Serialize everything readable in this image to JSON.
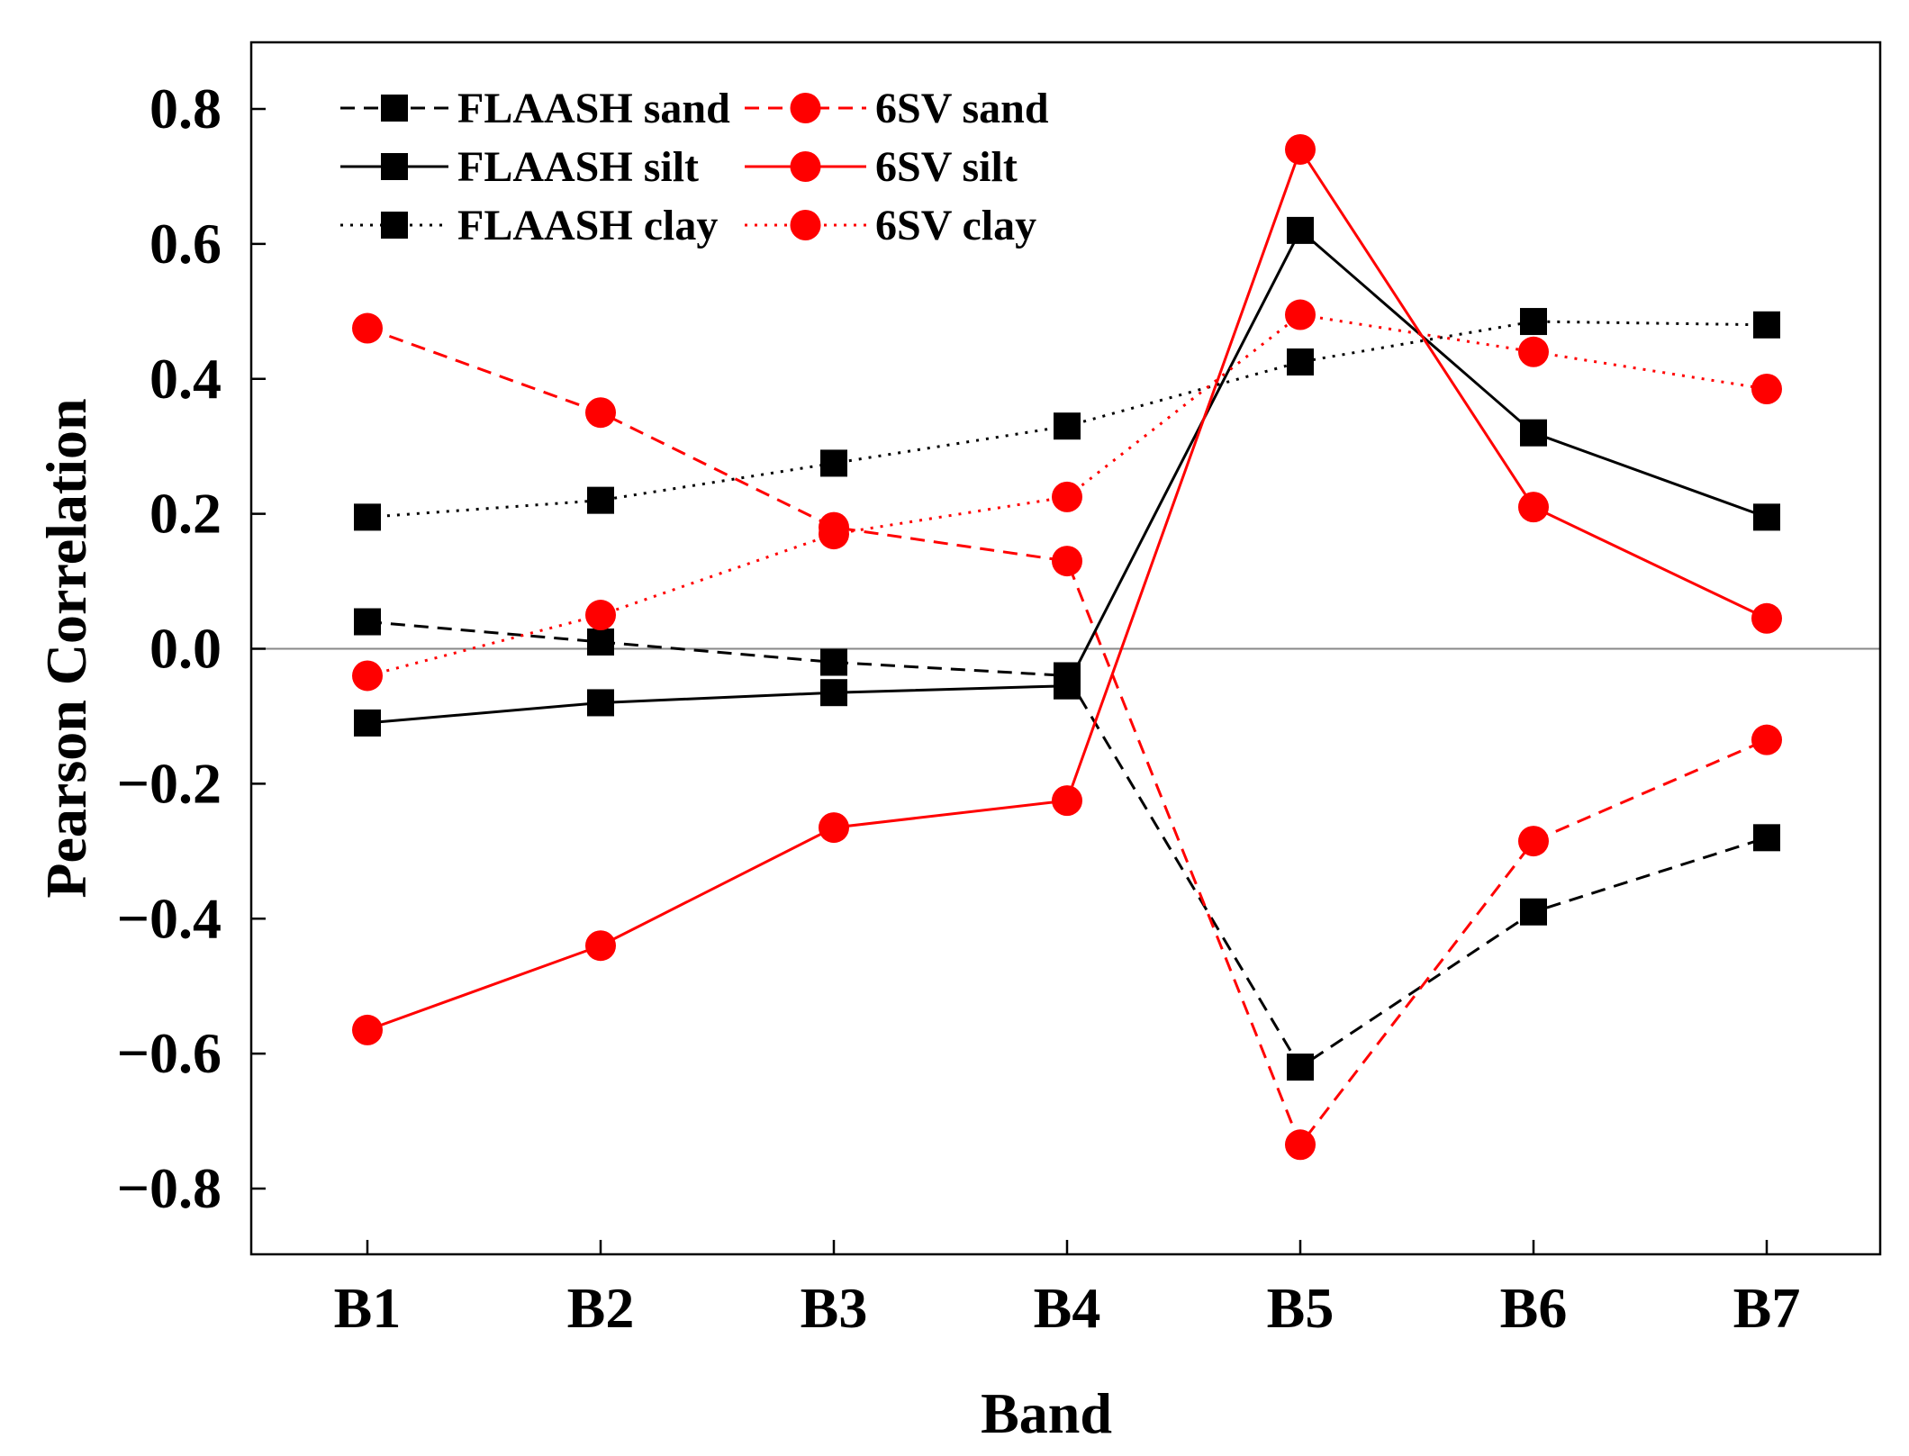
{
  "chart_data": {
    "type": "line",
    "title": "",
    "xlabel": "Band",
    "ylabel": "Pearson Correlation",
    "categories": [
      "B1",
      "B2",
      "B3",
      "B4",
      "B5",
      "B6",
      "B7"
    ],
    "ylim": [
      -0.9,
      0.9
    ],
    "yticks": [
      -0.8,
      -0.6,
      -0.4,
      -0.2,
      0.0,
      0.2,
      0.4,
      0.6,
      0.8
    ],
    "ytick_labels": [
      "−0.8",
      "−0.6",
      "−0.4",
      "−0.2",
      "0.0",
      "0.2",
      "0.4",
      "0.6",
      "0.8"
    ],
    "zero_line": true,
    "grid": false,
    "legend_position": "top-left",
    "series": [
      {
        "name": "FLAASH sand",
        "color": "#000000",
        "marker": "square",
        "dash": "dashed",
        "values": [
          0.04,
          0.01,
          -0.02,
          -0.04,
          -0.62,
          -0.39,
          -0.28
        ]
      },
      {
        "name": "6SV sand",
        "color": "#ff0000",
        "marker": "circle",
        "dash": "dashed",
        "values": [
          0.475,
          0.35,
          0.18,
          0.13,
          -0.735,
          -0.285,
          -0.135
        ]
      },
      {
        "name": "FLAASH silt",
        "color": "#000000",
        "marker": "square",
        "dash": "solid",
        "values": [
          -0.11,
          -0.08,
          -0.065,
          -0.055,
          0.62,
          0.32,
          0.195
        ]
      },
      {
        "name": "6SV silt",
        "color": "#ff0000",
        "marker": "circle",
        "dash": "solid",
        "values": [
          -0.565,
          -0.44,
          -0.265,
          -0.225,
          0.74,
          0.21,
          0.045
        ]
      },
      {
        "name": "FLAASH clay",
        "color": "#000000",
        "marker": "square",
        "dash": "dotted",
        "values": [
          0.195,
          0.22,
          0.275,
          0.33,
          0.425,
          0.485,
          0.48
        ]
      },
      {
        "name": "6SV clay",
        "color": "#ff0000",
        "marker": "circle",
        "dash": "dotted",
        "values": [
          -0.04,
          0.05,
          0.17,
          0.225,
          0.495,
          0.44,
          0.385
        ]
      }
    ]
  }
}
